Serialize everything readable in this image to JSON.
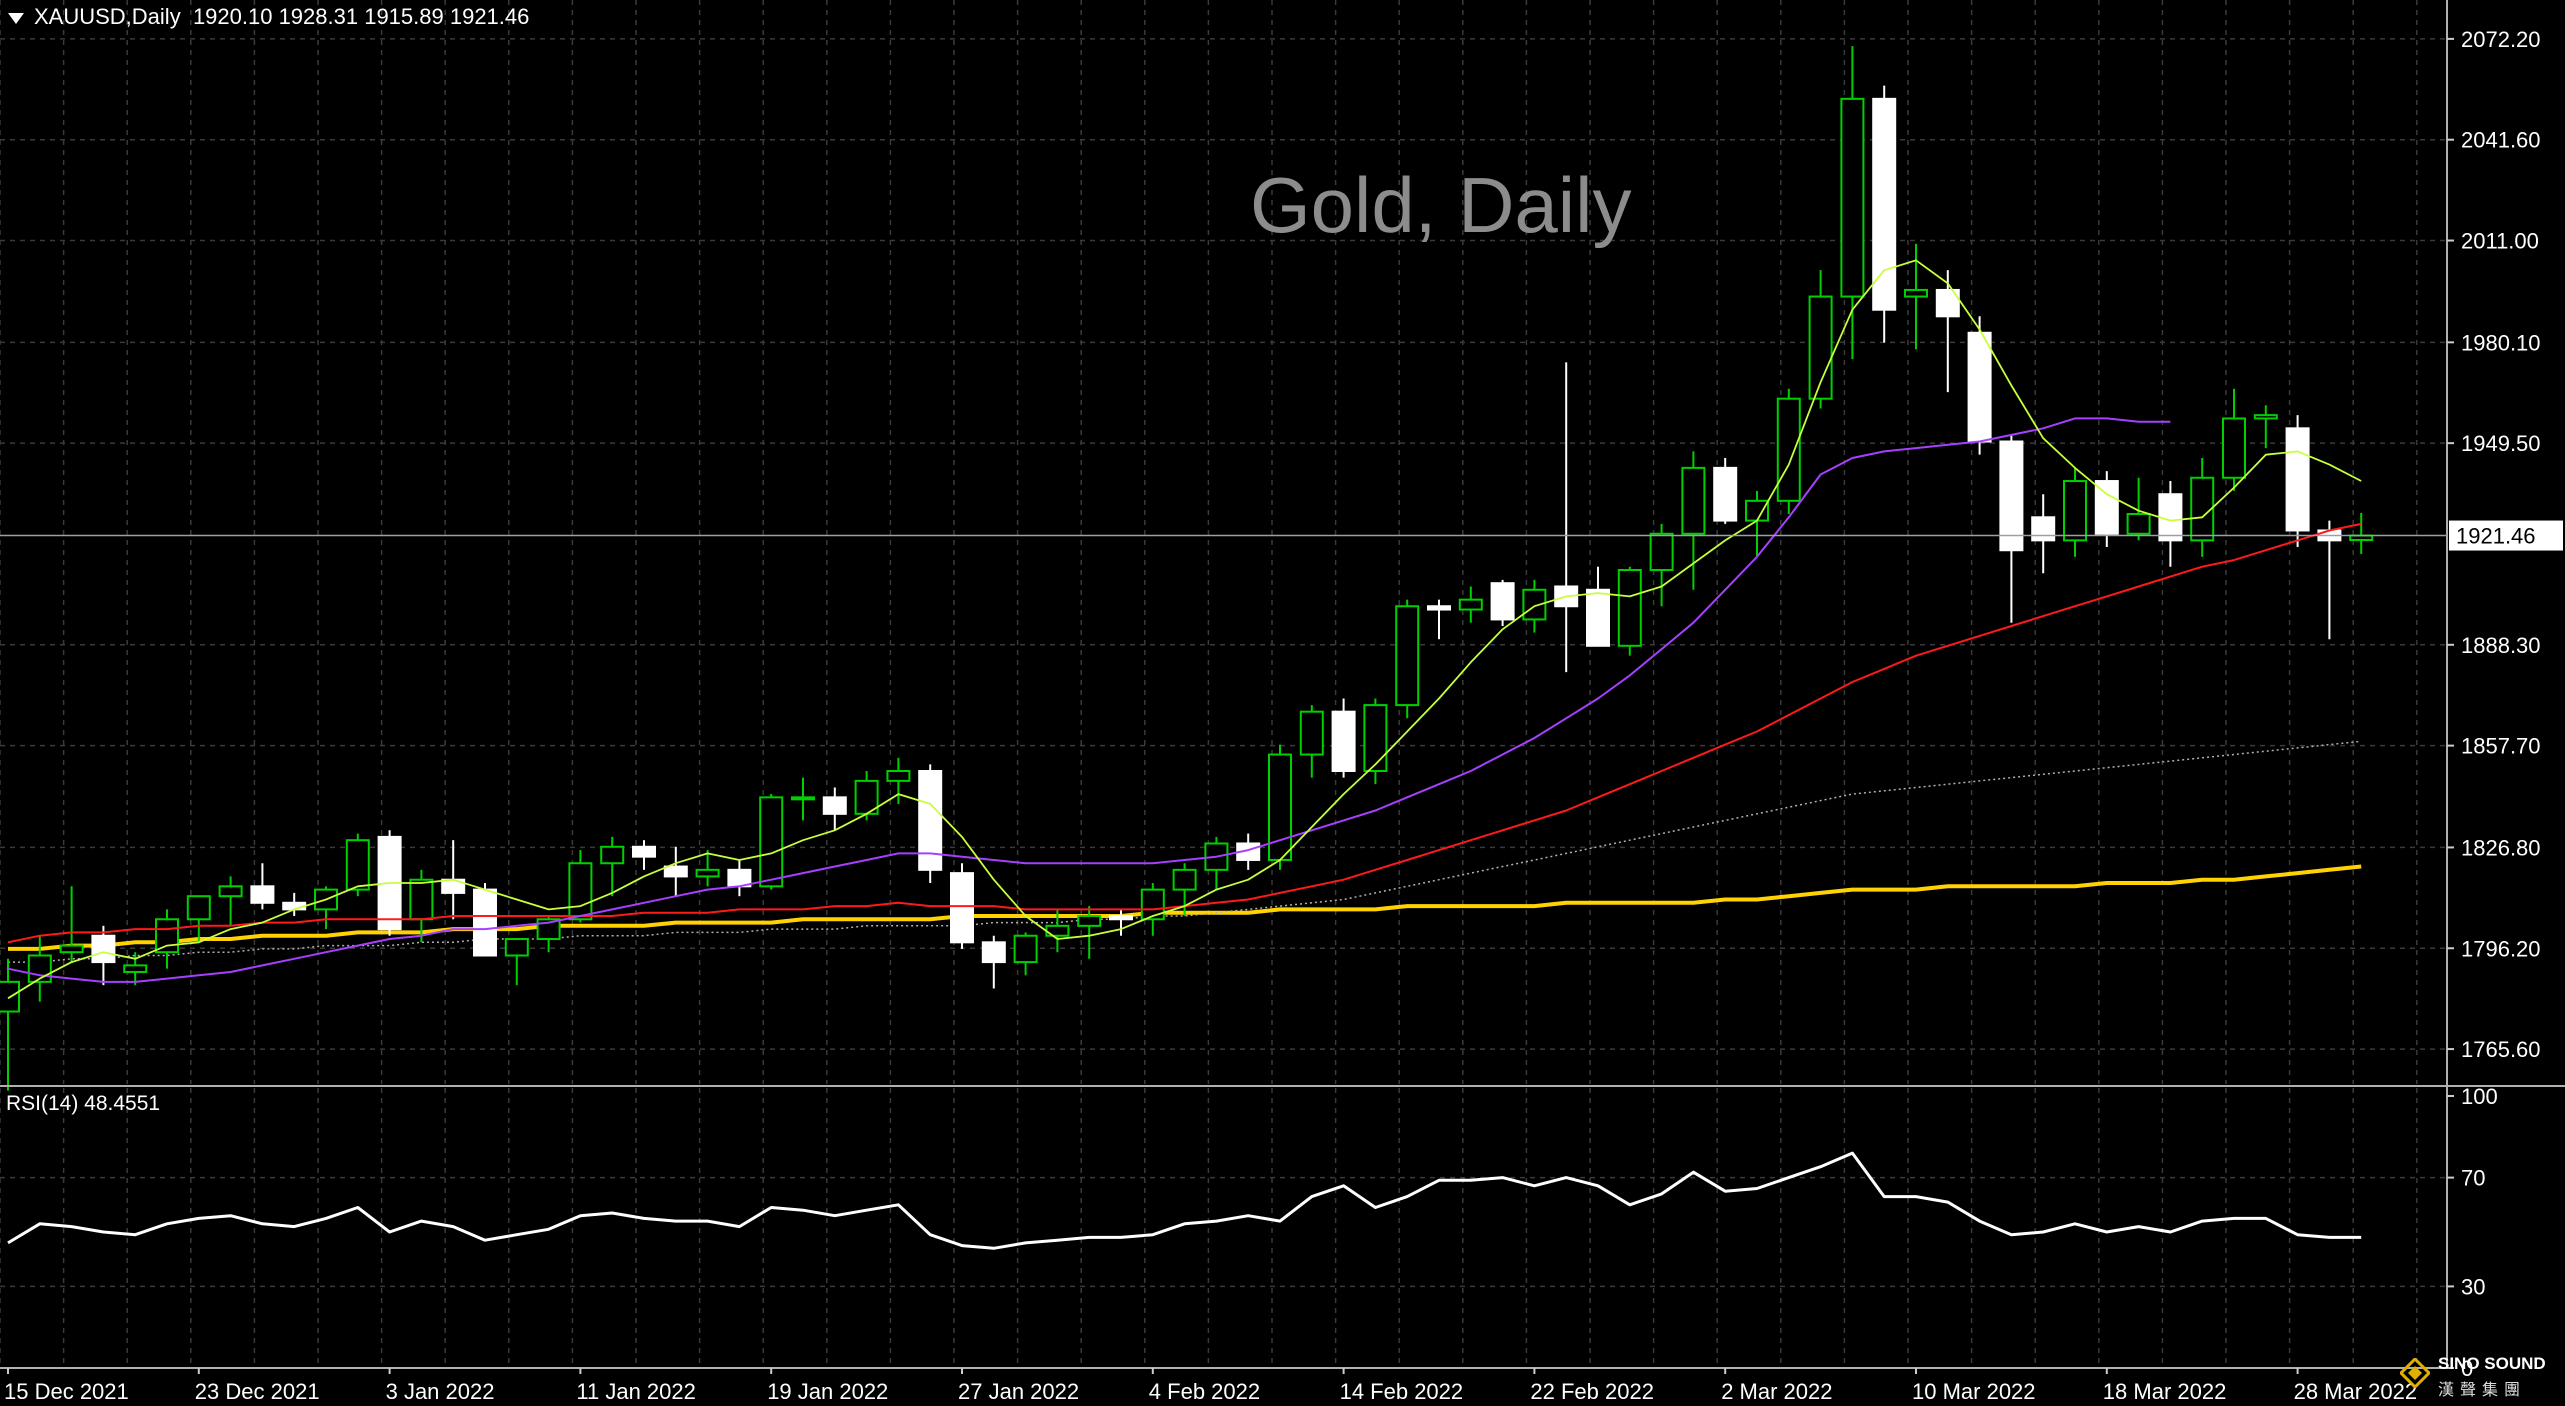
{
  "header": {
    "symbol": "XAUUSD,Daily",
    "ohlc": "1920.10 1928.31 1915.89 1921.46"
  },
  "watermark": "Gold, Daily",
  "rsi_label": "RSI(14) 48.4551",
  "price_tag": "1921.46",
  "logo": {
    "en": "SINO SOUND",
    "zh": "漢聲集團"
  },
  "colors": {
    "background": "#000000",
    "grid": "#3a3a3a",
    "bull_candle": "#00d000",
    "bear_candle": "#ffffff",
    "ma_fast": "#c8ff3c",
    "ma_mid": "#a640ff",
    "ma_slow": "#ff1a1a",
    "ma_100": "#b0b0b0",
    "ma_200": "#ffd200",
    "rsi_line": "#ffffff"
  },
  "chart_data": {
    "type": "candlestick",
    "price_axis": {
      "ticks": [
        "2072.20",
        "2041.60",
        "2011.00",
        "1980.10",
        "1949.50",
        "1888.30",
        "1857.70",
        "1826.80",
        "1796.20",
        "1765.60"
      ],
      "ylim": [
        1755,
        2084
      ],
      "last_price": 1921.46
    },
    "rsi_axis": {
      "ticks": [
        "100",
        "70",
        "30",
        "0"
      ],
      "ylim": [
        0,
        100
      ]
    },
    "x_labels": [
      {
        "text": "15 Dec 2021",
        "i": 0
      },
      {
        "text": "23 Dec 2021",
        "i": 6
      },
      {
        "text": "3 Jan 2022",
        "i": 12
      },
      {
        "text": "11 Jan 2022",
        "i": 18
      },
      {
        "text": "19 Jan 2022",
        "i": 24
      },
      {
        "text": "27 Jan 2022",
        "i": 30
      },
      {
        "text": "4 Feb 2022",
        "i": 36
      },
      {
        "text": "14 Feb 2022",
        "i": 42
      },
      {
        "text": "22 Feb 2022",
        "i": 48
      },
      {
        "text": "2 Mar 2022",
        "i": 54
      },
      {
        "text": "10 Mar 2022",
        "i": 60
      },
      {
        "text": "18 Mar 2022",
        "i": 66
      },
      {
        "text": "28 Mar 2022",
        "i": 72
      }
    ],
    "candles": [
      {
        "o": 1777,
        "h": 1793,
        "l": 1753,
        "c": 1786
      },
      {
        "o": 1786,
        "h": 1800,
        "l": 1780,
        "c": 1794
      },
      {
        "o": 1795,
        "h": 1815,
        "l": 1792,
        "c": 1797
      },
      {
        "o": 1800,
        "h": 1803,
        "l": 1785,
        "c": 1792
      },
      {
        "o": 1789,
        "h": 1795,
        "l": 1785,
        "c": 1791
      },
      {
        "o": 1795,
        "h": 1808,
        "l": 1790,
        "c": 1805
      },
      {
        "o": 1805,
        "h": 1812,
        "l": 1798,
        "c": 1812
      },
      {
        "o": 1812,
        "h": 1818,
        "l": 1803,
        "c": 1815
      },
      {
        "o": 1815,
        "h": 1822,
        "l": 1808,
        "c": 1810
      },
      {
        "o": 1810,
        "h": 1813,
        "l": 1806,
        "c": 1808
      },
      {
        "o": 1808,
        "h": 1815,
        "l": 1802,
        "c": 1814
      },
      {
        "o": 1814,
        "h": 1831,
        "l": 1812,
        "c": 1829
      },
      {
        "o": 1830,
        "h": 1832,
        "l": 1800,
        "c": 1802
      },
      {
        "o": 1805,
        "h": 1820,
        "l": 1798,
        "c": 1817
      },
      {
        "o": 1817,
        "h": 1829,
        "l": 1805,
        "c": 1813
      },
      {
        "o": 1814,
        "h": 1816,
        "l": 1796,
        "c": 1794
      },
      {
        "o": 1794,
        "h": 1799,
        "l": 1785,
        "c": 1799
      },
      {
        "o": 1799,
        "h": 1806,
        "l": 1795,
        "c": 1805
      },
      {
        "o": 1805,
        "h": 1826,
        "l": 1804,
        "c": 1822
      },
      {
        "o": 1822,
        "h": 1830,
        "l": 1812,
        "c": 1827
      },
      {
        "o": 1827,
        "h": 1829,
        "l": 1820,
        "c": 1824
      },
      {
        "o": 1821,
        "h": 1827,
        "l": 1812,
        "c": 1818
      },
      {
        "o": 1818,
        "h": 1826,
        "l": 1815,
        "c": 1820
      },
      {
        "o": 1820,
        "h": 1823,
        "l": 1812,
        "c": 1815
      },
      {
        "o": 1815,
        "h": 1843,
        "l": 1814,
        "c": 1842
      },
      {
        "o": 1842,
        "h": 1848,
        "l": 1835,
        "c": 1842
      },
      {
        "o": 1842,
        "h": 1845,
        "l": 1832,
        "c": 1837
      },
      {
        "o": 1837,
        "h": 1850,
        "l": 1835,
        "c": 1847
      },
      {
        "o": 1847,
        "h": 1854,
        "l": 1840,
        "c": 1850
      },
      {
        "o": 1850,
        "h": 1852,
        "l": 1816,
        "c": 1820
      },
      {
        "o": 1819,
        "h": 1822,
        "l": 1796,
        "c": 1798
      },
      {
        "o": 1798,
        "h": 1800,
        "l": 1784,
        "c": 1792
      },
      {
        "o": 1792,
        "h": 1801,
        "l": 1788,
        "c": 1800
      },
      {
        "o": 1800,
        "h": 1808,
        "l": 1795,
        "c": 1803
      },
      {
        "o": 1803,
        "h": 1809,
        "l": 1793,
        "c": 1806
      },
      {
        "o": 1806,
        "h": 1808,
        "l": 1800,
        "c": 1805
      },
      {
        "o": 1805,
        "h": 1816,
        "l": 1800,
        "c": 1814
      },
      {
        "o": 1814,
        "h": 1822,
        "l": 1806,
        "c": 1820
      },
      {
        "o": 1820,
        "h": 1830,
        "l": 1814,
        "c": 1828
      },
      {
        "o": 1828,
        "h": 1831,
        "l": 1820,
        "c": 1823
      },
      {
        "o": 1823,
        "h": 1858,
        "l": 1820,
        "c": 1855
      },
      {
        "o": 1855,
        "h": 1870,
        "l": 1848,
        "c": 1868
      },
      {
        "o": 1868,
        "h": 1872,
        "l": 1848,
        "c": 1850
      },
      {
        "o": 1850,
        "h": 1872,
        "l": 1846,
        "c": 1870
      },
      {
        "o": 1870,
        "h": 1902,
        "l": 1866,
        "c": 1900
      },
      {
        "o": 1900,
        "h": 1902,
        "l": 1890,
        "c": 1899
      },
      {
        "o": 1899,
        "h": 1906,
        "l": 1895,
        "c": 1902
      },
      {
        "o": 1907,
        "h": 1908,
        "l": 1894,
        "c": 1896
      },
      {
        "o": 1896,
        "h": 1908,
        "l": 1892,
        "c": 1905
      },
      {
        "o": 1906,
        "h": 1974,
        "l": 1880,
        "c": 1900
      },
      {
        "o": 1905,
        "h": 1912,
        "l": 1888,
        "c": 1888
      },
      {
        "o": 1888,
        "h": 1912,
        "l": 1885,
        "c": 1911
      },
      {
        "o": 1911,
        "h": 1925,
        "l": 1900,
        "c": 1922
      },
      {
        "o": 1922,
        "h": 1947,
        "l": 1905,
        "c": 1942
      },
      {
        "o": 1942,
        "h": 1945,
        "l": 1925,
        "c": 1926
      },
      {
        "o": 1926,
        "h": 1935,
        "l": 1915,
        "c": 1932
      },
      {
        "o": 1932,
        "h": 1966,
        "l": 1928,
        "c": 1963
      },
      {
        "o": 1963,
        "h": 2002,
        "l": 1960,
        "c": 1994
      },
      {
        "o": 1994,
        "h": 2070,
        "l": 1975,
        "c": 2054
      },
      {
        "o": 2054,
        "h": 2058,
        "l": 1980,
        "c": 1990
      },
      {
        "o": 1994,
        "h": 2010,
        "l": 1978,
        "c": 1996
      },
      {
        "o": 1996,
        "h": 2002,
        "l": 1965,
        "c": 1988
      },
      {
        "o": 1983,
        "h": 1988,
        "l": 1946,
        "c": 1950
      },
      {
        "o": 1950,
        "h": 1952,
        "l": 1895,
        "c": 1917
      },
      {
        "o": 1927,
        "h": 1934,
        "l": 1910,
        "c": 1920
      },
      {
        "o": 1920,
        "h": 1942,
        "l": 1915,
        "c": 1938
      },
      {
        "o": 1938,
        "h": 1941,
        "l": 1918,
        "c": 1922
      },
      {
        "o": 1922,
        "h": 1939,
        "l": 1920,
        "c": 1928
      },
      {
        "o": 1934,
        "h": 1938,
        "l": 1912,
        "c": 1920
      },
      {
        "o": 1920,
        "h": 1945,
        "l": 1915,
        "c": 1939
      },
      {
        "o": 1939,
        "h": 1966,
        "l": 1935,
        "c": 1957
      },
      {
        "o": 1957,
        "h": 1961,
        "l": 1948,
        "c": 1958
      },
      {
        "o": 1954,
        "h": 1958,
        "l": 1918,
        "c": 1923
      },
      {
        "o": 1923,
        "h": 1926,
        "l": 1890,
        "c": 1920
      },
      {
        "o": 1920.1,
        "h": 1928.31,
        "l": 1915.89,
        "c": 1921.46
      }
    ],
    "ma_fast": [
      1781,
      1787,
      1792,
      1795,
      1793,
      1797,
      1798,
      1802,
      1804,
      1808,
      1811,
      1815,
      1816,
      1816,
      1817,
      1814,
      1811,
      1808,
      1809,
      1813,
      1818,
      1822,
      1825,
      1823,
      1825,
      1829,
      1832,
      1837,
      1843,
      1840,
      1830,
      1817,
      1806,
      1799,
      1800,
      1802,
      1806,
      1809,
      1814,
      1817,
      1823,
      1833,
      1843,
      1852,
      1862,
      1872,
      1883,
      1893,
      1900,
      1903,
      1904,
      1903,
      1906,
      1913,
      1920,
      1926,
      1943,
      1968,
      1990,
      2002,
      2005,
      1998,
      1984,
      1967,
      1951,
      1942,
      1934,
      1929,
      1926,
      1927,
      1936,
      1946,
      1947,
      1943,
      1938
    ],
    "ma_mid": [
      1790,
      1788,
      1787,
      1786,
      1786,
      1787,
      1788,
      1789,
      1791,
      1793,
      1795,
      1797,
      1799,
      1800,
      1802,
      1802,
      1803,
      1804,
      1806,
      1808,
      1810,
      1812,
      1814,
      1815,
      1817,
      1819,
      1821,
      1823,
      1825,
      1825,
      1824,
      1823,
      1822,
      1822,
      1822,
      1822,
      1822,
      1823,
      1824,
      1826,
      1829,
      1832,
      1835,
      1838,
      1842,
      1846,
      1850,
      1855,
      1860,
      1866,
      1872,
      1879,
      1887,
      1895,
      1905,
      1915,
      1927,
      1940,
      1945,
      1947,
      1948,
      1949,
      1950,
      1952,
      1954,
      1957,
      1957,
      1956,
      1956
    ],
    "ma_slow": [
      1798,
      1800,
      1801,
      1801,
      1802,
      1802,
      1803,
      1803,
      1804,
      1804,
      1805,
      1805,
      1805,
      1805,
      1806,
      1806,
      1806,
      1806,
      1806,
      1806,
      1807,
      1807,
      1807,
      1808,
      1808,
      1808,
      1809,
      1809,
      1810,
      1809,
      1809,
      1809,
      1808,
      1808,
      1808,
      1808,
      1808,
      1809,
      1810,
      1811,
      1813,
      1815,
      1817,
      1820,
      1823,
      1826,
      1829,
      1832,
      1835,
      1838,
      1842,
      1846,
      1850,
      1854,
      1858,
      1862,
      1867,
      1872,
      1877,
      1881,
      1885,
      1888,
      1891,
      1894,
      1897,
      1900,
      1903,
      1906,
      1909,
      1912,
      1914,
      1917,
      1920,
      1923,
      1925
    ],
    "ma_100": [
      1792,
      1792,
      1793,
      1793,
      1794,
      1794,
      1795,
      1795,
      1796,
      1796,
      1797,
      1797,
      1797,
      1798,
      1798,
      1799,
      1799,
      1799,
      1800,
      1800,
      1800,
      1801,
      1801,
      1801,
      1802,
      1802,
      1802,
      1803,
      1803,
      1803,
      1803,
      1804,
      1804,
      1804,
      1805,
      1805,
      1806,
      1806,
      1807,
      1808,
      1809,
      1810,
      1811,
      1813,
      1815,
      1817,
      1819,
      1821,
      1823,
      1825,
      1827,
      1829,
      1831,
      1833,
      1835,
      1837,
      1839,
      1841,
      1843,
      1844,
      1845,
      1846,
      1847,
      1848,
      1849,
      1850,
      1851,
      1852,
      1853,
      1854,
      1855,
      1856,
      1857,
      1858,
      1859
    ],
    "ma_200": [
      1796,
      1796,
      1797,
      1797,
      1798,
      1798,
      1799,
      1799,
      1800,
      1800,
      1800,
      1801,
      1801,
      1801,
      1802,
      1802,
      1802,
      1803,
      1803,
      1803,
      1803,
      1804,
      1804,
      1804,
      1804,
      1805,
      1805,
      1805,
      1805,
      1805,
      1806,
      1806,
      1806,
      1806,
      1806,
      1806,
      1807,
      1807,
      1807,
      1807,
      1808,
      1808,
      1808,
      1808,
      1809,
      1809,
      1809,
      1809,
      1809,
      1810,
      1810,
      1810,
      1810,
      1810,
      1811,
      1811,
      1812,
      1813,
      1814,
      1814,
      1814,
      1815,
      1815,
      1815,
      1815,
      1815,
      1816,
      1816,
      1816,
      1817,
      1817,
      1818,
      1819,
      1820,
      1821
    ],
    "rsi": [
      46,
      53,
      52,
      50,
      49,
      53,
      55,
      56,
      53,
      52,
      55,
      59,
      50,
      54,
      52,
      47,
      49,
      51,
      56,
      57,
      55,
      54,
      54,
      52,
      59,
      58,
      56,
      58,
      60,
      49,
      45,
      44,
      46,
      47,
      48,
      48,
      49,
      53,
      54,
      56,
      54,
      63,
      67,
      59,
      63,
      69,
      69,
      70,
      67,
      70,
      67,
      60,
      64,
      72,
      65,
      66,
      70,
      74,
      79,
      63,
      63,
      61,
      54,
      49,
      50,
      53,
      50,
      52,
      50,
      54,
      55,
      55,
      49,
      48,
      48
    ]
  }
}
